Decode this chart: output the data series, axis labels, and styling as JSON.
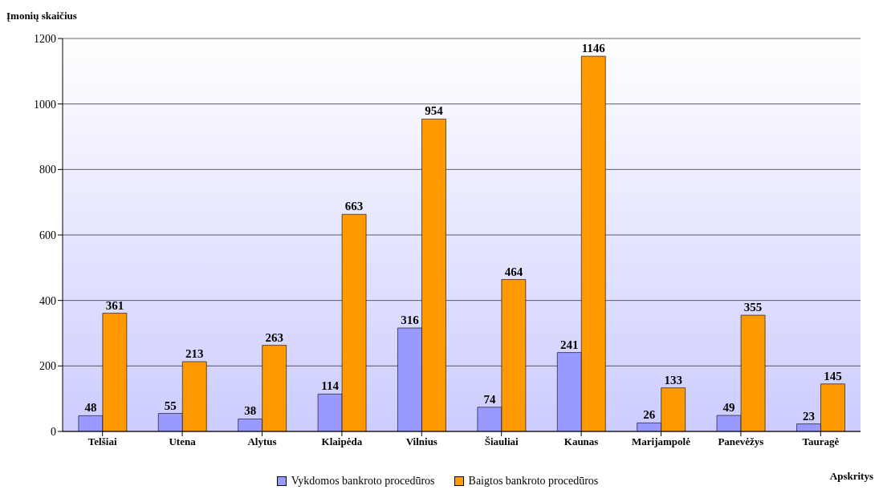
{
  "chart_data": {
    "type": "bar",
    "xlabel": "Apskritys",
    "ylabel": "Įmonių skaičius",
    "categories": [
      "Telšiai",
      "Utena",
      "Alytus",
      "Klaipėda",
      "Vilnius",
      "Šiauliai",
      "Kaunas",
      "Marijampolė",
      "Panevėžys",
      "Tauragė"
    ],
    "series": [
      {
        "name": "Vykdomos bankroto procedūros",
        "color": "#9999ff",
        "values": [
          48,
          55,
          38,
          114,
          316,
          74,
          241,
          26,
          49,
          23
        ]
      },
      {
        "name": "Baigtos bankroto procedūros",
        "color": "#ff9900",
        "values": [
          361,
          213,
          263,
          663,
          954,
          464,
          1146,
          133,
          355,
          145
        ]
      }
    ],
    "ylim": [
      0,
      1200
    ],
    "yticks": [
      0,
      200,
      400,
      600,
      800,
      1000,
      1200
    ],
    "grid": "y",
    "legend": "bottom",
    "data_labels": true
  }
}
